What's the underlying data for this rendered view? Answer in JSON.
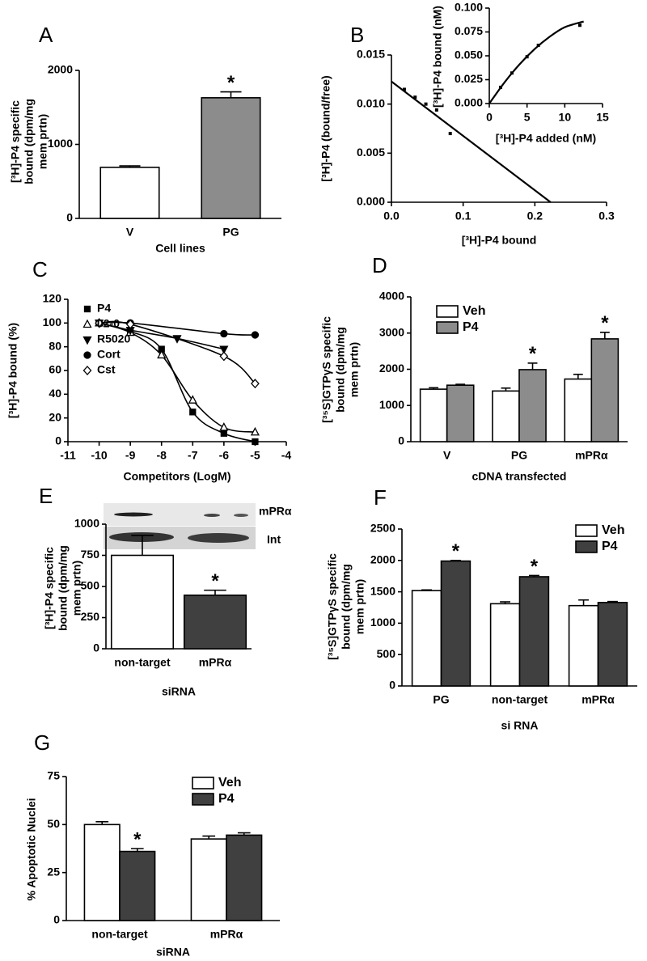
{
  "chart_data": [
    {
      "type": "bar",
      "panel": "A",
      "ylabel": [
        "[³H]-P4 specific",
        "bound (dpm/mg",
        "mem prtn)"
      ],
      "xlabel": "Cell lines",
      "categories": [
        "V",
        "PG"
      ],
      "values": [
        690,
        1630
      ],
      "errors": [
        20,
        80
      ],
      "colors": [
        "#ffffff",
        "#8c8c8c"
      ],
      "ylim": [
        0,
        2000
      ],
      "yticks": [
        0,
        1000,
        2000
      ],
      "annotations": [
        {
          "text": "*",
          "category": "PG"
        }
      ]
    },
    {
      "type": "scatter",
      "panel": "B",
      "ylabel": [
        "[³H]-P4 (bound/free)"
      ],
      "xlabel": "[³H]-P4 bound",
      "xlim": [
        0,
        0.3
      ],
      "xticks": [
        {
          "value": 0,
          "label": "0.0"
        },
        0.1,
        0.2,
        0.3
      ],
      "ylim": [
        0,
        0.015
      ],
      "yticks": [
        {
          "value": 0,
          "label": "0.000"
        },
        0.005,
        {
          "value": 0.01,
          "label": "0.010"
        },
        0.015
      ],
      "series": [
        {
          "style": "points",
          "x": [
            0.018,
            0.033,
            0.048,
            0.063,
            0.082
          ],
          "values": [
            0.0115,
            0.0107,
            0.01,
            0.0094,
            0.007
          ]
        },
        {
          "style": "line",
          "x": [
            0,
            0.222
          ],
          "values": [
            0.0123,
            0
          ]
        }
      ]
    },
    {
      "type": "scatter",
      "ylabel": [
        "[³H]-P4 bound (nM)"
      ],
      "xlabel": "[³H]-P4 added (nM)",
      "xlim": [
        0,
        15
      ],
      "xticks": [
        0,
        5,
        10,
        15
      ],
      "ylim": [
        0,
        0.1
      ],
      "yticks": [
        {
          "value": 0,
          "label": "0.000"
        },
        0.025,
        {
          "value": 0.05,
          "label": "0.050"
        },
        0.075,
        {
          "value": 0.1,
          "label": "0.100"
        }
      ],
      "series": [
        {
          "style": "points",
          "x": [
            1.5,
            3,
            5,
            6.5,
            12
          ],
          "values": [
            0.017,
            0.032,
            0.049,
            0.061,
            0.082
          ]
        },
        {
          "style": "curve",
          "x": [
            0,
            2,
            4,
            6,
            8,
            10,
            12.5
          ],
          "values": [
            0,
            0.022,
            0.041,
            0.057,
            0.07,
            0.08,
            0.086
          ]
        }
      ]
    },
    {
      "type": "line",
      "panel": "C",
      "ylabel": [
        "[³H]-P4 bound (%)"
      ],
      "xlabel": "Competitors (LogM)",
      "xlim": [
        -11,
        -4
      ],
      "xticks": [
        -11,
        -10,
        -9,
        -8,
        -7,
        -6,
        -5,
        -4
      ],
      "ylim": [
        0,
        120
      ],
      "yticks": [
        0,
        20,
        40,
        60,
        80,
        100,
        120
      ],
      "legend": "upper left",
      "series": [
        {
          "name": "P4",
          "marker": "square",
          "filled": true,
          "x": [
            -10,
            -9,
            -8,
            -7,
            -6,
            -5
          ],
          "values": [
            100,
            93,
            78,
            25,
            7,
            0
          ]
        },
        {
          "name": "02-0",
          "marker": "triangle",
          "filled": false,
          "x": [
            -10,
            -9,
            -8,
            -7,
            -6,
            -5
          ],
          "values": [
            100,
            92,
            73,
            35,
            12,
            8
          ]
        },
        {
          "name": "R5020",
          "marker": "triangle-down",
          "filled": true,
          "x": [
            -10,
            -9,
            -7.5,
            -6
          ],
          "values": [
            100,
            94,
            87,
            78
          ]
        },
        {
          "name": "Cort",
          "marker": "circle",
          "filled": true,
          "x": [
            -10,
            -9,
            -6,
            -5
          ],
          "values": [
            100,
            100,
            91,
            90
          ]
        },
        {
          "name": "Cst",
          "marker": "diamond",
          "filled": false,
          "x": [
            -10,
            -9,
            -6,
            -5
          ],
          "values": [
            100,
            99,
            72,
            49
          ]
        }
      ]
    },
    {
      "type": "bar",
      "panel": "D",
      "ylabel": [
        "[³⁵S]GTPγS specific",
        "bound (dpm/mg",
        "mem prtn)"
      ],
      "xlabel": "cDNA transfected",
      "categories": [
        "V",
        "PG",
        "mPRα"
      ],
      "series": [
        {
          "name": "Veh",
          "color": "#ffffff",
          "values": [
            1450,
            1400,
            1730
          ],
          "errors": [
            40,
            80,
            130
          ]
        },
        {
          "name": "P4",
          "color": "#8c8c8c",
          "values": [
            1560,
            1990,
            2840
          ],
          "errors": [
            25,
            180,
            180
          ]
        }
      ],
      "ylim": [
        0,
        4000
      ],
      "yticks": [
        0,
        1000,
        2000,
        3000,
        4000
      ],
      "legend": "upper left",
      "annotations": [
        {
          "text": "*",
          "category": "PG",
          "series": "P4"
        },
        {
          "text": "*",
          "category": "mPRα",
          "series": "P4"
        }
      ]
    },
    {
      "type": "bar",
      "panel": "E",
      "ylabel": [
        "[³H]-P4 specific",
        "bound (dpm/mg",
        "mem prtn)"
      ],
      "xlabel": "siRNA",
      "categories": [
        "non-target",
        "mPRα"
      ],
      "values": [
        750,
        430
      ],
      "errors": [
        160,
        40
      ],
      "colors": [
        "#ffffff",
        "#404040"
      ],
      "ylim": [
        0,
        1000
      ],
      "yticks": [
        0,
        250,
        500,
        750,
        1000
      ],
      "blot_labels": [
        "mPRα",
        "Int"
      ],
      "annotations": [
        {
          "text": "*",
          "category": "mPRα"
        }
      ]
    },
    {
      "type": "bar",
      "panel": "F",
      "ylabel": [
        "[³⁵S]GTPγS specific",
        "bound (dpm/mg",
        "mem prtn)"
      ],
      "xlabel": "si RNA",
      "categories": [
        "PG",
        "non-target",
        "mPRα"
      ],
      "series": [
        {
          "name": "Veh",
          "color": "#ffffff",
          "values": [
            1520,
            1310,
            1280
          ],
          "errors": [
            10,
            30,
            90
          ]
        },
        {
          "name": "P4",
          "color": "#404040",
          "values": [
            1990,
            1740,
            1330
          ],
          "errors": [
            10,
            20,
            15
          ]
        }
      ],
      "ylim": [
        0,
        2500
      ],
      "yticks": [
        0,
        500,
        1000,
        1500,
        2000,
        2500
      ],
      "legend": "upper right",
      "annotations": [
        {
          "text": "*",
          "category": "PG",
          "series": "P4"
        },
        {
          "text": "*",
          "category": "non-target",
          "series": "P4"
        }
      ]
    },
    {
      "type": "bar",
      "panel": "G",
      "ylabel": [
        "% Apoptotic Nuclei"
      ],
      "xlabel": "siRNA",
      "categories": [
        "non-target",
        "mPRα"
      ],
      "series": [
        {
          "name": "Veh",
          "color": "#ffffff",
          "values": [
            50,
            42.5
          ],
          "errors": [
            1.5,
            1.5
          ]
        },
        {
          "name": "P4",
          "color": "#404040",
          "values": [
            36,
            44.5
          ],
          "errors": [
            1.5,
            1.2
          ]
        }
      ],
      "ylim": [
        0,
        75
      ],
      "yticks": [
        0,
        25,
        50,
        75
      ],
      "legend": "upper center",
      "annotations": [
        {
          "text": "*",
          "category": "non-target",
          "series": "P4"
        }
      ]
    }
  ]
}
